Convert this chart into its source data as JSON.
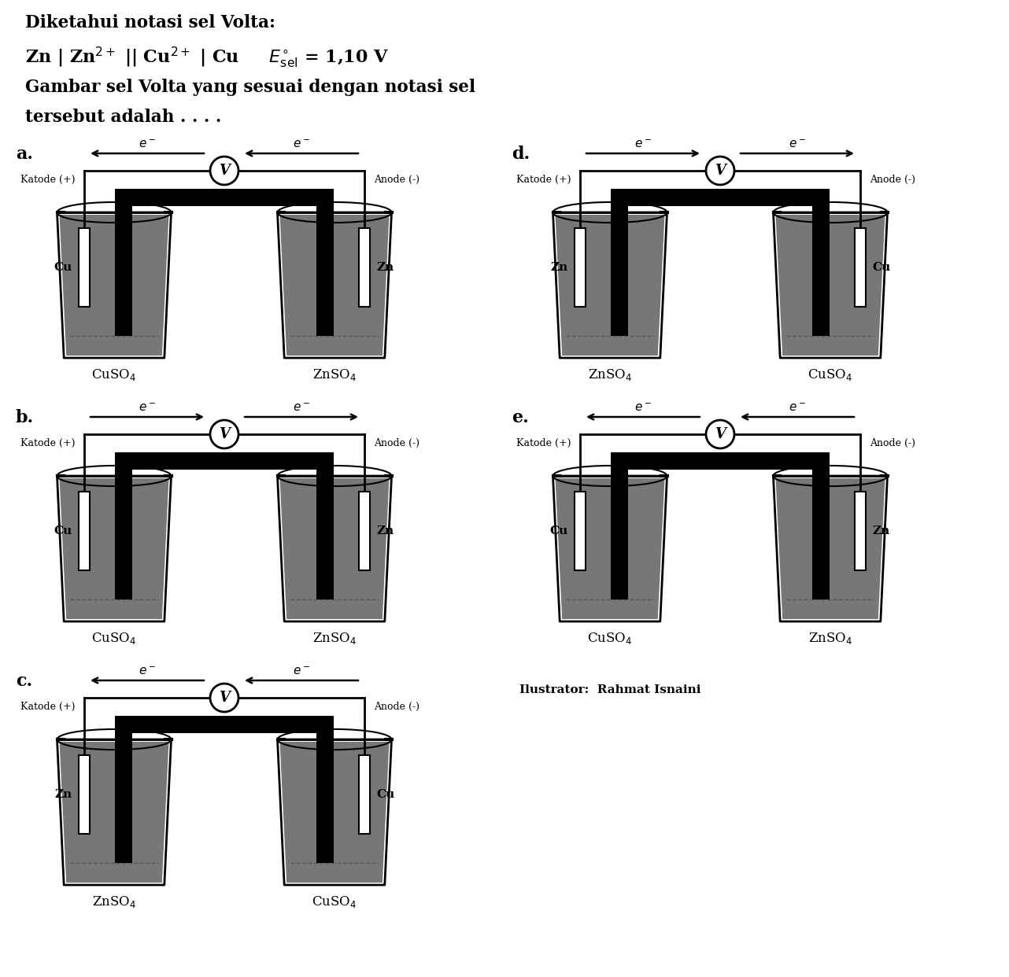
{
  "bg_color": "#ffffff",
  "title1": "Diketahui notasi sel Volta:",
  "title2": "Zn | Zn$^{2+}$ || Cu$^{2+}$ | Cu",
  "title_esel": "$E^{\\circ}_{\\mathrm{sel}}$ = 1,10 V",
  "title3": "Gambar sel Volta yang sesuai dengan notasi sel",
  "title4": "tersebut adalah . . . .",
  "illustrator": "Ilustrator:  Rahmat Isnaini",
  "diagrams": [
    {
      "label": "a.",
      "col": 0,
      "row": 0,
      "left_elec": "Cu",
      "right_elec": "Zn",
      "left_sol": "CuSO$_4$",
      "right_sol": "ZnSO$_4$",
      "left_pole": "Katode (+)",
      "right_pole": "Anode (-)",
      "e_left": "left",
      "e_right": "left"
    },
    {
      "label": "b.",
      "col": 0,
      "row": 1,
      "left_elec": "Cu",
      "right_elec": "Zn",
      "left_sol": "CuSO$_4$",
      "right_sol": "ZnSO$_4$",
      "left_pole": "Katode (+)",
      "right_pole": "Anode (-)",
      "e_left": "right",
      "e_right": "right"
    },
    {
      "label": "c.",
      "col": 0,
      "row": 2,
      "left_elec": "Zn",
      "right_elec": "Cu",
      "left_sol": "ZnSO$_4$",
      "right_sol": "CuSO$_4$",
      "left_pole": "Katode (+)",
      "right_pole": "Anode (-)",
      "e_left": "left",
      "e_right": "left"
    },
    {
      "label": "d.",
      "col": 1,
      "row": 0,
      "left_elec": "Zn",
      "right_elec": "Cu",
      "left_sol": "ZnSO$_4$",
      "right_sol": "CuSO$_4$",
      "left_pole": "Katode (+)",
      "right_pole": "Anode (-)",
      "e_left": "right",
      "e_right": "right"
    },
    {
      "label": "e.",
      "col": 1,
      "row": 1,
      "left_elec": "Cu",
      "right_elec": "Zn",
      "left_sol": "CuSO$_4$",
      "right_sol": "ZnSO$_4$",
      "left_pole": "Katode (+)",
      "right_pole": "Anode (-)",
      "e_left": "left",
      "e_right": "left"
    }
  ]
}
